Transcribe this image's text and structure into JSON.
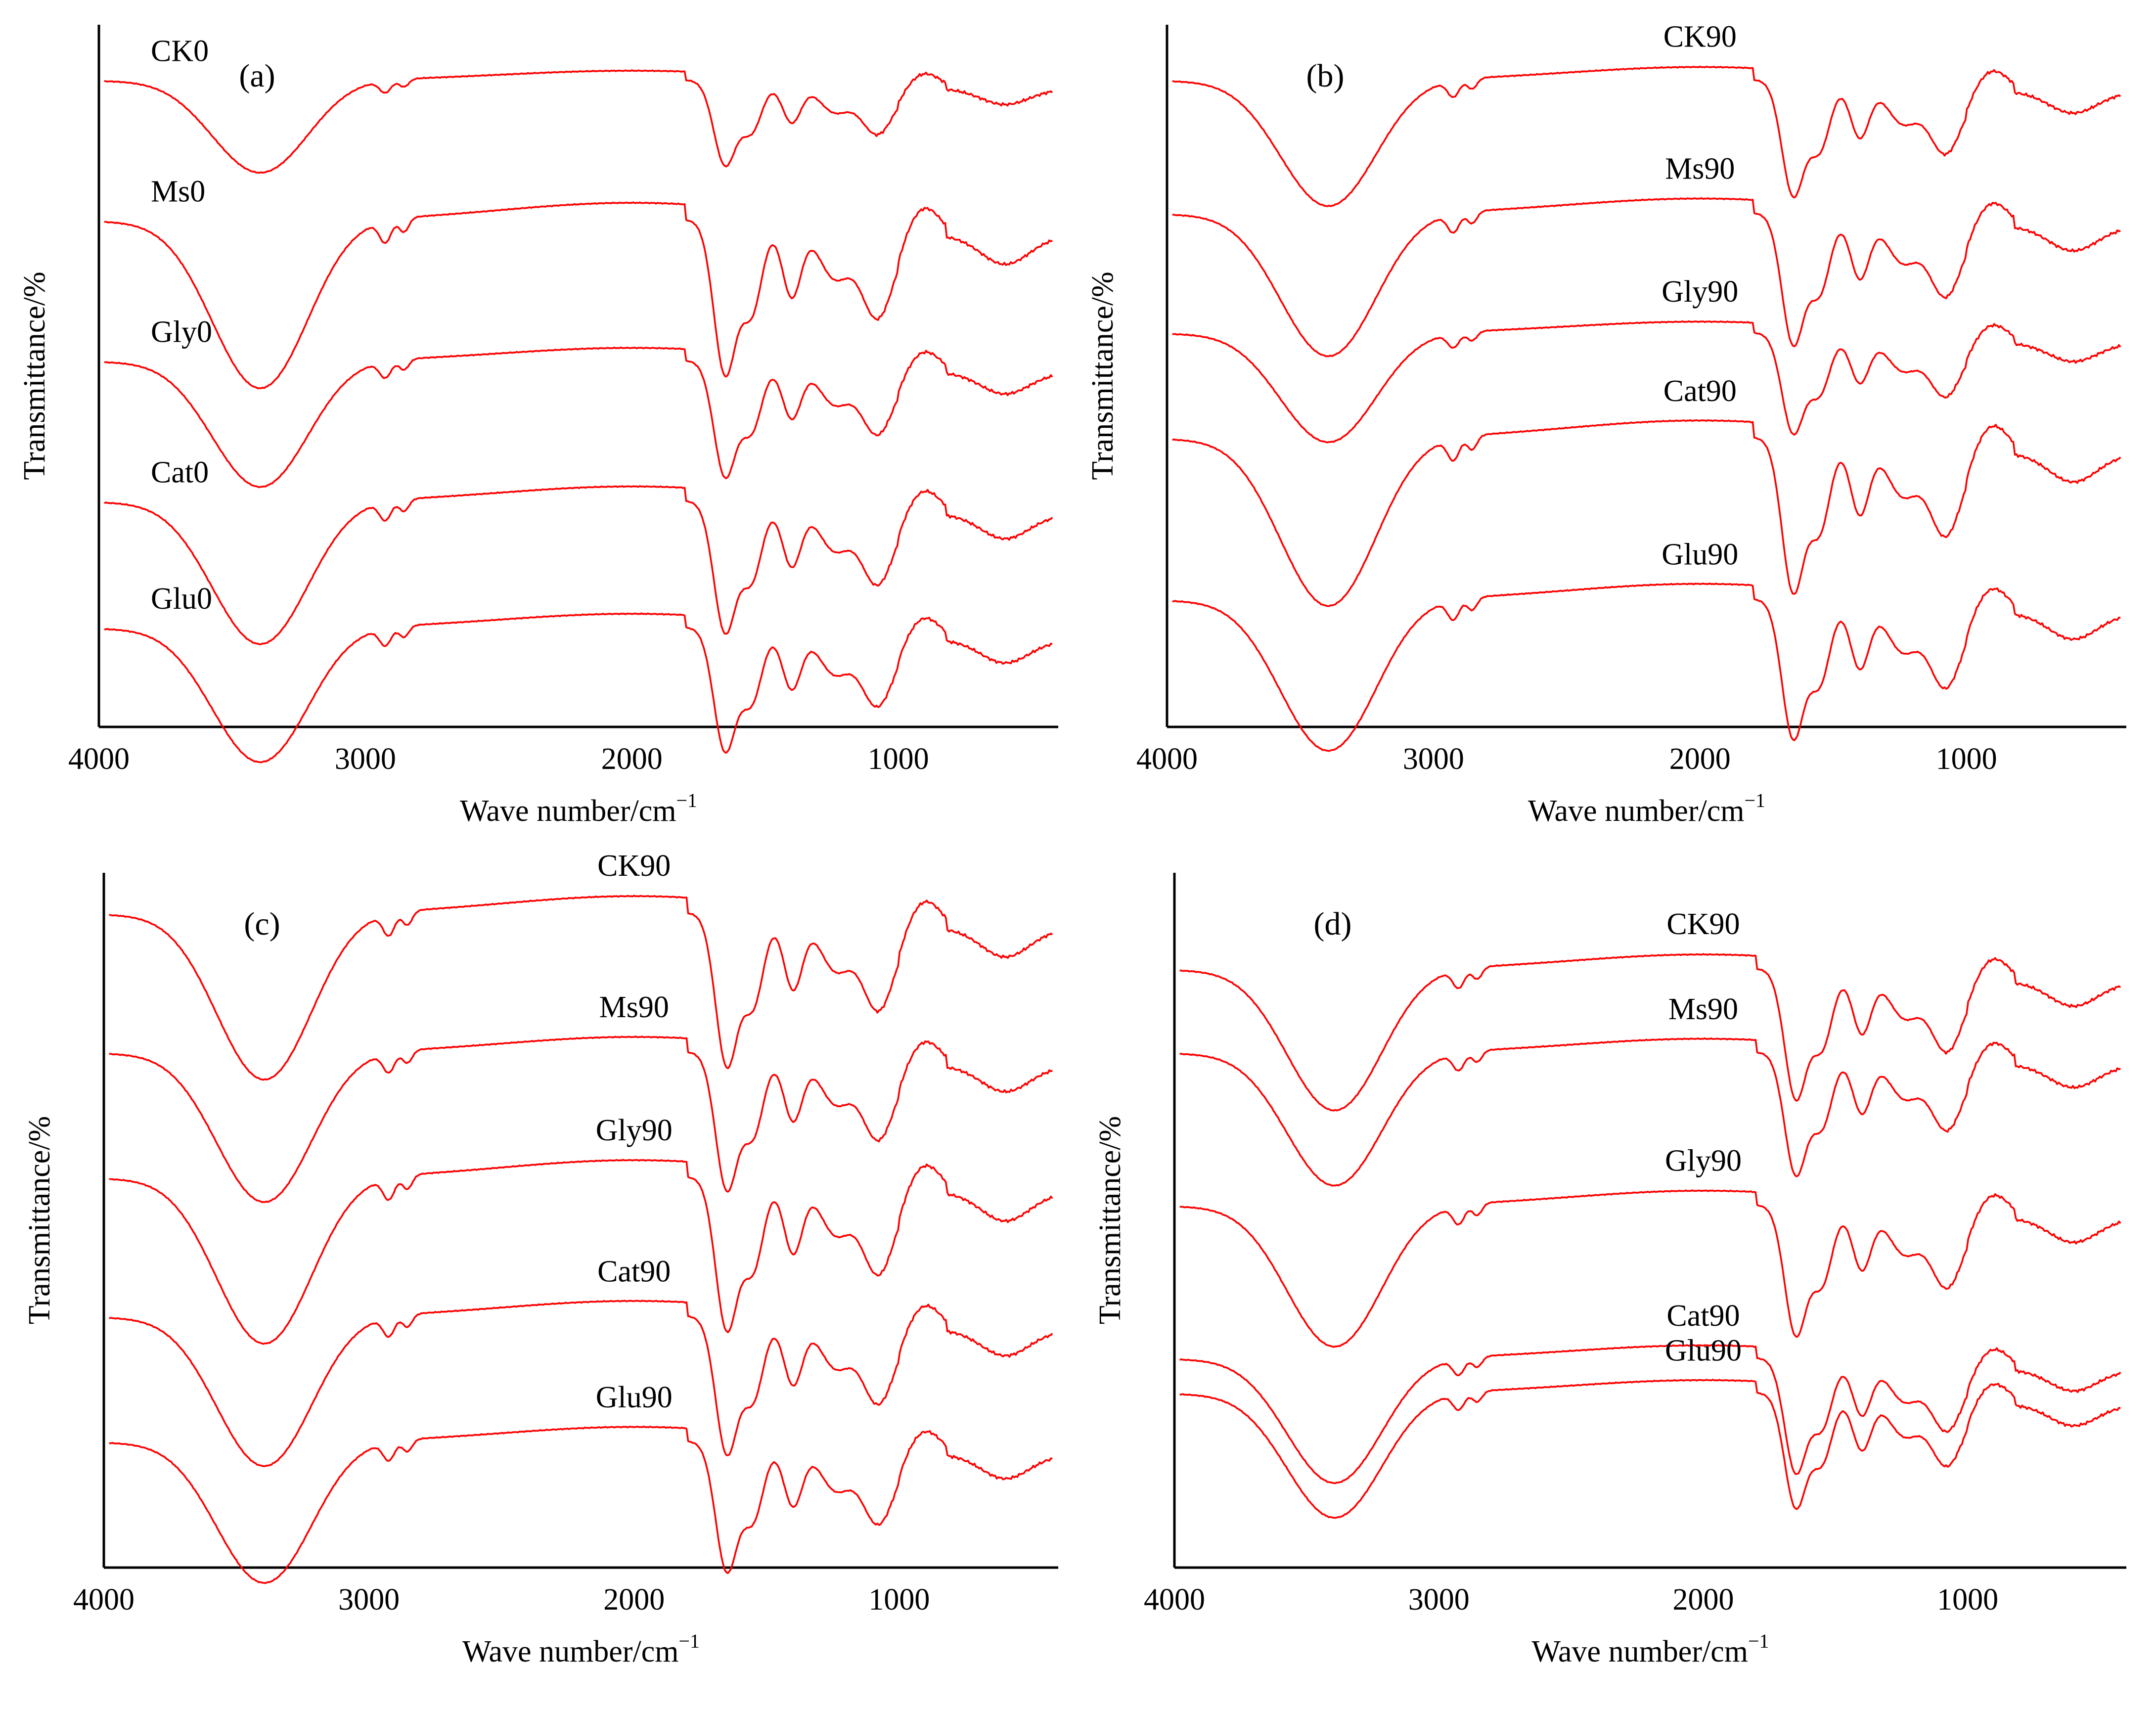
{
  "figure": {
    "line_color": "#ff0000"
  },
  "chart_data": [
    {
      "type": "line",
      "panel_label": "(a)",
      "xlabel": "Wave number/cm",
      "xlabel_sup": "−1",
      "ylabel": "Transmittance/%",
      "xlim": [
        4000,
        400
      ],
      "x_ticks": [
        "4000",
        "3000",
        "2000",
        "1000"
      ],
      "x_tick_values": [
        4000,
        3000,
        2000,
        1000
      ],
      "series": [
        {
          "name": "CK0",
          "offset": 0.92,
          "depth": 0.55
        },
        {
          "name": "Ms0",
          "offset": 0.72,
          "depth": 1.0
        },
        {
          "name": "Gly0",
          "offset": 0.52,
          "depth": 0.75
        },
        {
          "name": "Cat0",
          "offset": 0.32,
          "depth": 0.85
        },
        {
          "name": "Glu0",
          "offset": 0.14,
          "depth": 0.8
        }
      ]
    },
    {
      "type": "line",
      "panel_label": "(b)",
      "xlabel": "Wave number/cm",
      "xlabel_sup": "−1",
      "ylabel": "Transmittance/%",
      "xlim": [
        4000,
        400
      ],
      "x_ticks": [
        "4000",
        "3000",
        "2000",
        "1000"
      ],
      "x_tick_values": [
        4000,
        3000,
        2000,
        1000
      ],
      "series": [
        {
          "name": "CK90",
          "offset": 0.92,
          "depth": 0.75
        },
        {
          "name": "Ms90",
          "offset": 0.73,
          "depth": 0.85
        },
        {
          "name": "Gly90",
          "offset": 0.56,
          "depth": 0.65
        },
        {
          "name": "Cat90",
          "offset": 0.41,
          "depth": 1.0
        },
        {
          "name": "Glu90",
          "offset": 0.18,
          "depth": 0.9
        }
      ]
    },
    {
      "type": "line",
      "panel_label": "(c)",
      "xlabel": "Wave number/cm",
      "xlabel_sup": "−1",
      "ylabel": "Transmittance/%",
      "xlim": [
        4000,
        400
      ],
      "x_ticks": [
        "4000",
        "3000",
        "2000",
        "1000"
      ],
      "x_tick_values": [
        4000,
        3000,
        2000,
        1000
      ],
      "series": [
        {
          "name": "CK90",
          "offset": 0.94,
          "depth": 1.0
        },
        {
          "name": "Ms90",
          "offset": 0.74,
          "depth": 0.9
        },
        {
          "name": "Gly90",
          "offset": 0.56,
          "depth": 1.0
        },
        {
          "name": "Cat90",
          "offset": 0.36,
          "depth": 0.9
        },
        {
          "name": "Glu90",
          "offset": 0.18,
          "depth": 0.85
        }
      ]
    },
    {
      "type": "line",
      "panel_label": "(d)",
      "xlabel": "Wave number/cm",
      "xlabel_sup": "−1",
      "ylabel": "Transmittance/%",
      "xlim": [
        4000,
        400
      ],
      "x_ticks": [
        "4000",
        "3000",
        "2000",
        "1000"
      ],
      "x_tick_values": [
        4000,
        3000,
        2000,
        1000
      ],
      "series": [
        {
          "name": "CK90",
          "offset": 0.86,
          "depth": 0.85
        },
        {
          "name": "Ms90",
          "offset": 0.74,
          "depth": 0.8
        },
        {
          "name": "Gly90",
          "offset": 0.52,
          "depth": 0.85
        },
        {
          "name": "Cat90",
          "offset": 0.3,
          "depth": 0.75
        },
        {
          "name": "Glu90",
          "offset": 0.25,
          "depth": 0.75
        }
      ]
    }
  ]
}
